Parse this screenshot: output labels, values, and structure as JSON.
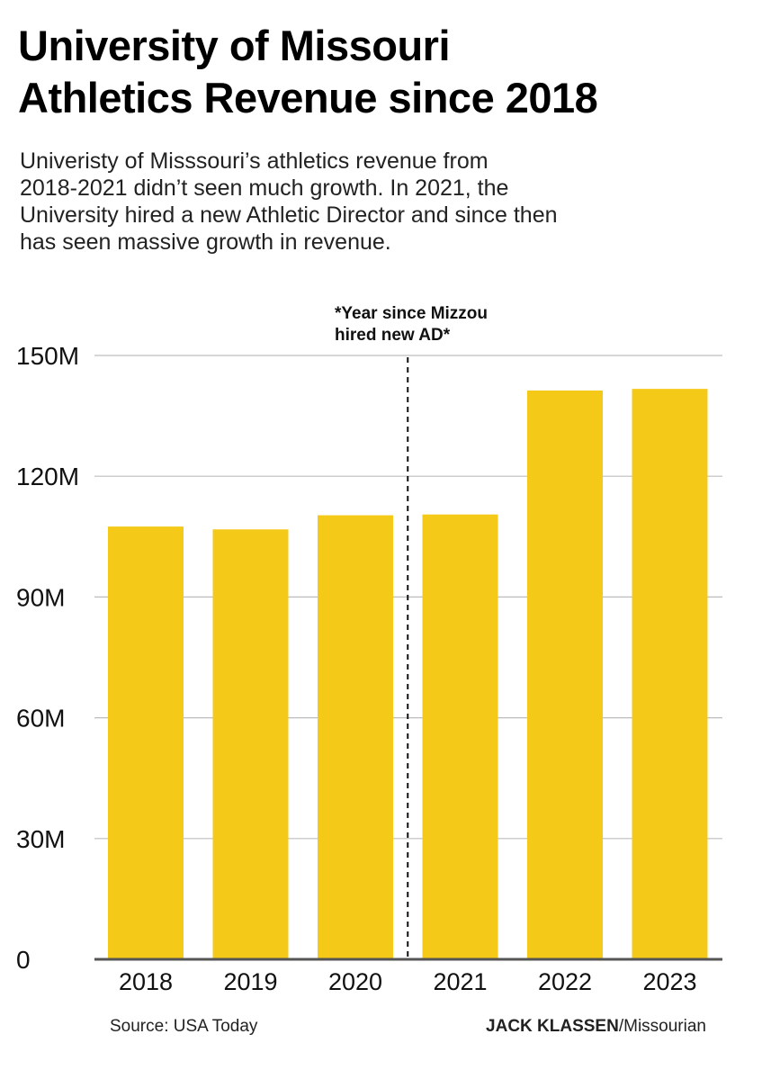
{
  "title_line1": "University of Missouri",
  "title_line2": "Athletics Revenue since 2018",
  "subtitle_line1": "Univeristy of Misssouri’s athletics revenue from",
  "subtitle_line2": "2018-2021 didn’t seen much growth. In 2021, the",
  "subtitle_line3": "University hired a new Athletic Director and since then",
  "subtitle_line4": "has seen massive growth in revenue.",
  "footer": {
    "source": "Source: USA Today",
    "author": "JACK KLASSEN",
    "outlet": "/Missourian"
  },
  "colors": {
    "bar": "#F5C918",
    "grid": "#bdbdbd",
    "axis": "#555555"
  },
  "chart_data": {
    "type": "bar",
    "categories": [
      "2018",
      "2019",
      "2020",
      "2021",
      "2022",
      "2023"
    ],
    "values": [
      107.5,
      106.8,
      110.3,
      110.5,
      141.3,
      141.7
    ],
    "unit": "M",
    "ylim": [
      0,
      150
    ],
    "yticks": [
      0,
      30,
      60,
      90,
      120,
      150
    ],
    "ytick_labels": [
      "0",
      "30M",
      "60M",
      "90M",
      "120M",
      "150M"
    ],
    "grid": true,
    "annotation": {
      "line1": "*Year since Mizzou",
      "line2": "hired new AD*",
      "between": [
        "2020",
        "2021"
      ]
    }
  }
}
